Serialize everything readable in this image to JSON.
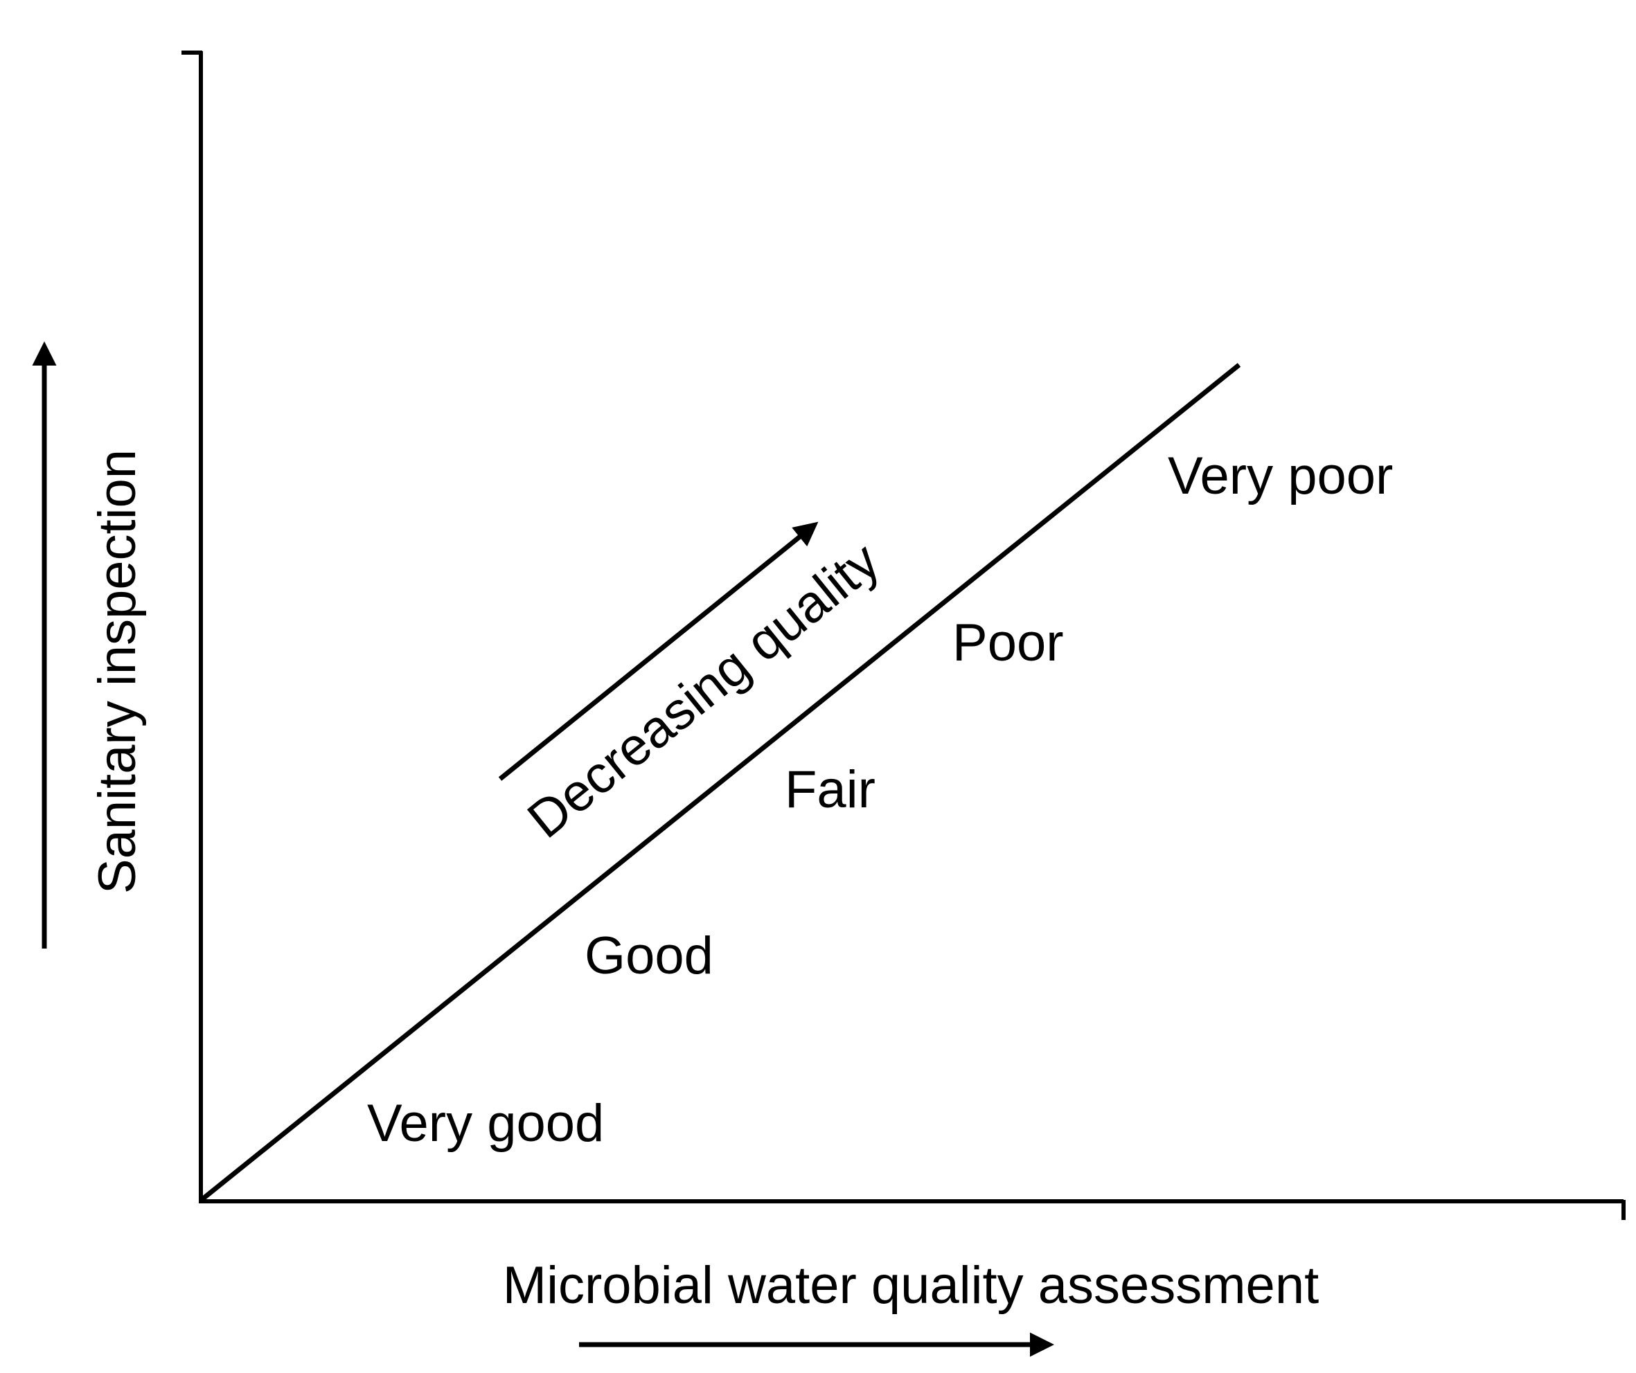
{
  "diagram": {
    "y_axis_label": "Sanitary inspection",
    "x_axis_label": "Microbial water quality assessment",
    "trend_label": "Decreasing quality",
    "quality_levels": [
      "Very good",
      "Good",
      "Fair",
      "Poor",
      "Very poor"
    ],
    "colors": {
      "ink": "#000000",
      "background": "#ffffff"
    }
  }
}
